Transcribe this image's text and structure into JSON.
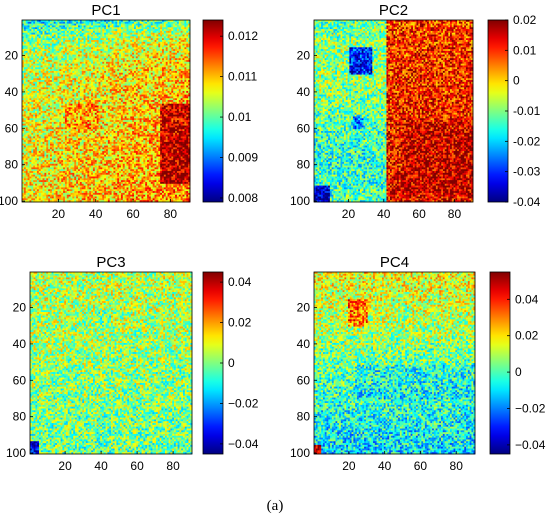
{
  "figure": {
    "caption": "(a)"
  },
  "colors": {
    "colormap": "jet",
    "stops": [
      "#00008f",
      "#0000ff",
      "#00ffff",
      "#ffff00",
      "#ff0000",
      "#800000"
    ],
    "axis": "#000000",
    "background": "#ffffff"
  },
  "chart_data": [
    {
      "type": "heatmap",
      "title": "PC1",
      "xlabel": "",
      "ylabel": "",
      "xlim": [
        1,
        90
      ],
      "ylim": [
        100,
        1
      ],
      "xticks": [
        20,
        40,
        60,
        80
      ],
      "xtick_labels": [
        "20",
        "40",
        "60",
        "80"
      ],
      "yticks": [
        20,
        40,
        60,
        80,
        100
      ],
      "ytick_labels": [
        "20",
        "40",
        "60",
        "80",
        "100"
      ],
      "grid": false,
      "grid_size": {
        "cols": 90,
        "rows": 100
      },
      "clim": [
        0.0079,
        0.0124
      ],
      "colorbar_ticks": [
        0.008,
        0.009,
        0.01,
        0.011,
        0.012
      ],
      "colorbar_labels": [
        "0.008",
        "0.009",
        "0.01",
        "0.011",
        "0.012"
      ],
      "pattern": "noisy field mostly green-yellow (~0.0095-0.011); higher (orange/red) band toward lower-right x=75-90, y=50-90; lower (cyan) values along top rows"
    },
    {
      "type": "heatmap",
      "title": "PC2",
      "xlabel": "",
      "ylabel": "",
      "xlim": [
        1,
        90
      ],
      "ylim": [
        100,
        1
      ],
      "xticks": [
        20,
        40,
        60,
        80
      ],
      "xtick_labels": [
        "20",
        "40",
        "60",
        "80"
      ],
      "yticks": [
        20,
        40,
        60,
        80,
        100
      ],
      "ytick_labels": [
        "20",
        "40",
        "60",
        "80",
        "100"
      ],
      "grid": false,
      "grid_size": {
        "cols": 90,
        "rows": 100
      },
      "clim": [
        -0.04,
        0.02
      ],
      "colorbar_ticks": [
        -0.04,
        -0.03,
        -0.02,
        -0.01,
        0,
        0.01,
        0.02
      ],
      "colorbar_labels": [
        "-0.04",
        "-0.03",
        "-0.02",
        "-0.01",
        "0",
        "0.01",
        "0.02"
      ],
      "pattern": "left region (x<40) cyan/green (~-0.01); right region (x>45) orange/red (~0.01-0.02); dark blue square around x=20-32, y=15-30; blue spot near x=23, y=55; dark blue corner at x<8, y>90"
    },
    {
      "type": "heatmap",
      "title": "PC3",
      "xlabel": "",
      "ylabel": "",
      "xlim": [
        1,
        90
      ],
      "ylim": [
        100,
        1
      ],
      "xticks": [
        20,
        40,
        60,
        80
      ],
      "xtick_labels": [
        "20",
        "40",
        "60",
        "80"
      ],
      "yticks": [
        20,
        40,
        60,
        80,
        100
      ],
      "ytick_labels": [
        "20",
        "40",
        "60",
        "80",
        "100"
      ],
      "grid": false,
      "grid_size": {
        "cols": 90,
        "rows": 100
      },
      "clim": [
        -0.045,
        0.045
      ],
      "colorbar_ticks": [
        -0.04,
        -0.02,
        0,
        0.02,
        0.04
      ],
      "colorbar_labels": [
        "−0.04",
        "−0.02",
        "0",
        "0.02",
        "0.04"
      ],
      "pattern": "noisy field around 0 (green/cyan/yellow); slightly positive upper half, slightly negative lower half; small dark blue patch in bottom-left corner"
    },
    {
      "type": "heatmap",
      "title": "PC4",
      "xlabel": "",
      "ylabel": "",
      "xlim": [
        1,
        90
      ],
      "ylim": [
        100,
        1
      ],
      "xticks": [
        20,
        40,
        60,
        80
      ],
      "xtick_labels": [
        "20",
        "40",
        "60",
        "80"
      ],
      "yticks": [
        20,
        40,
        60,
        80,
        100
      ],
      "ytick_labels": [
        "20",
        "40",
        "60",
        "80",
        "100"
      ],
      "grid": false,
      "grid_size": {
        "cols": 90,
        "rows": 100
      },
      "clim": [
        -0.045,
        0.055
      ],
      "colorbar_ticks": [
        -0.04,
        -0.02,
        0,
        0.02,
        0.04
      ],
      "colorbar_labels": [
        "−0.04",
        "−0.02",
        "0",
        "0.02",
        "0.04"
      ],
      "pattern": "upper half green-yellow (~0.01), orange patch near x=20-30, y=15-30; lower half cyan/blue (~-0.02); red spot in bottom-left corner"
    }
  ]
}
